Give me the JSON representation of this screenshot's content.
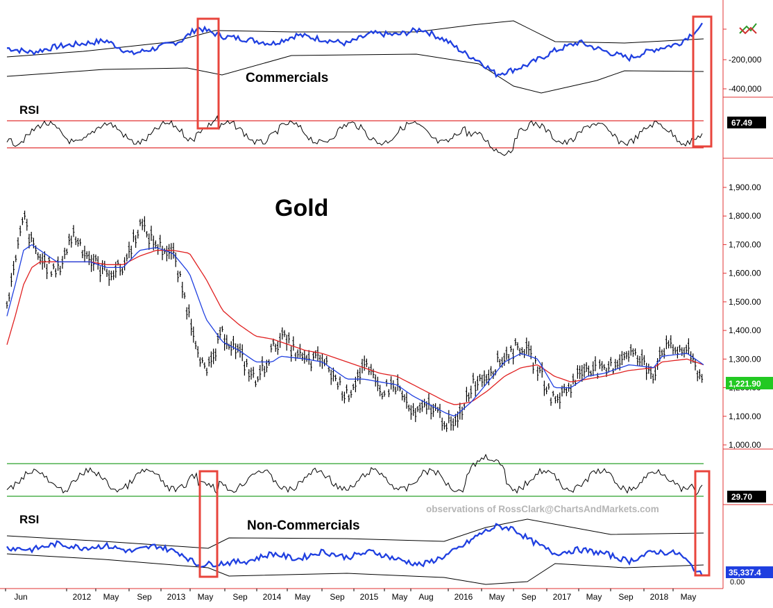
{
  "chart_data": [
    {
      "type": "line",
      "title": "Commercials",
      "indicator_label": "RSI",
      "y_ticks": [
        "-200,000",
        "-400,000"
      ],
      "series": [
        {
          "color": "#1f3fe0",
          "x": [
            "2011-06",
            "2011-09",
            "2011-12",
            "2012-03",
            "2012-06",
            "2012-09",
            "2012-12",
            "2013-03",
            "2013-05",
            "2013-08",
            "2013-11",
            "2014-02",
            "2014-05",
            "2014-08",
            "2014-11",
            "2015-02",
            "2015-05",
            "2015-08",
            "2015-11",
            "2016-01",
            "2016-03",
            "2016-05",
            "2016-07",
            "2016-09",
            "2016-12",
            "2017-03",
            "2017-06",
            "2017-09",
            "2017-12",
            "2018-03",
            "2018-06"
          ],
          "y": [
            -120000,
            -150000,
            -110000,
            -90000,
            -70000,
            -160000,
            -120000,
            -70000,
            20000,
            -40000,
            -60000,
            -90000,
            -30000,
            -60000,
            -90000,
            -20000,
            -30000,
            10000,
            -70000,
            -150000,
            -210000,
            -300000,
            -270000,
            -230000,
            -140000,
            -80000,
            -140000,
            -190000,
            -130000,
            -90000,
            40000
          ]
        }
      ],
      "rsi_value_label": "67.49"
    },
    {
      "type": "bar",
      "title": "Gold",
      "watermark": "observations of RossClark@ChartsAndMarkets.com",
      "y_ticks": [
        "1,900.00",
        "1,800.00",
        "1,700.00",
        "1,600.00",
        "1,500.00",
        "1,400.00",
        "1,300.00",
        "1,200.00",
        "1,100.00",
        "1,000.00"
      ],
      "ylim": [
        1000,
        1950
      ],
      "last_price_label": "1,221.90",
      "price_color": "#000000",
      "ma_fast_color": "#1f3fe0",
      "ma_slow_color": "#e02020",
      "last_color": "#22c922",
      "price_x": [
        "2011-06",
        "2011-07",
        "2011-08",
        "2011-09",
        "2011-10",
        "2011-12",
        "2012-02",
        "2012-04",
        "2012-06",
        "2012-08",
        "2012-10",
        "2012-12",
        "2013-02",
        "2013-04",
        "2013-06",
        "2013-08",
        "2013-10",
        "2013-12",
        "2014-02",
        "2014-03",
        "2014-06",
        "2014-08",
        "2014-11",
        "2015-01",
        "2015-03",
        "2015-05",
        "2015-07",
        "2015-09",
        "2015-11",
        "2015-12",
        "2016-02",
        "2016-04",
        "2016-06",
        "2016-08",
        "2016-10",
        "2016-12",
        "2017-02",
        "2017-04",
        "2017-06",
        "2017-09",
        "2017-12",
        "2018-01",
        "2018-04",
        "2018-06"
      ],
      "price_y": [
        1500,
        1630,
        1800,
        1700,
        1650,
        1600,
        1740,
        1650,
        1600,
        1620,
        1770,
        1700,
        1670,
        1450,
        1240,
        1390,
        1320,
        1220,
        1330,
        1380,
        1290,
        1300,
        1170,
        1280,
        1190,
        1210,
        1100,
        1140,
        1080,
        1060,
        1210,
        1250,
        1310,
        1350,
        1270,
        1150,
        1210,
        1280,
        1250,
        1330,
        1250,
        1340,
        1330,
        1220
      ],
      "ma_fast_y": [
        1450,
        1560,
        1680,
        1700,
        1680,
        1640,
        1640,
        1640,
        1620,
        1620,
        1680,
        1690,
        1670,
        1600,
        1440,
        1360,
        1330,
        1290,
        1290,
        1310,
        1300,
        1290,
        1230,
        1230,
        1220,
        1210,
        1170,
        1140,
        1110,
        1100,
        1150,
        1220,
        1290,
        1320,
        1300,
        1200,
        1200,
        1240,
        1250,
        1280,
        1270,
        1310,
        1320,
        1280
      ],
      "ma_slow_y": [
        1350,
        1450,
        1560,
        1620,
        1640,
        1640,
        1640,
        1640,
        1630,
        1630,
        1660,
        1680,
        1680,
        1670,
        1580,
        1470,
        1420,
        1380,
        1370,
        1360,
        1330,
        1320,
        1290,
        1270,
        1250,
        1240,
        1210,
        1180,
        1150,
        1140,
        1150,
        1190,
        1240,
        1270,
        1280,
        1240,
        1220,
        1230,
        1240,
        1260,
        1270,
        1290,
        1300,
        1280
      ]
    },
    {
      "type": "line",
      "title": "Non-Commercials",
      "indicator_label": "RSI",
      "rsi_value_label": "29.70",
      "last_value_label": "35,337.4",
      "tick_fragment": "0.00",
      "series": [
        {
          "color": "#1f3fe0",
          "x": [
            "2011-06",
            "2011-09",
            "2011-12",
            "2012-03",
            "2012-06",
            "2012-09",
            "2012-12",
            "2013-03",
            "2013-05",
            "2013-08",
            "2013-11",
            "2014-02",
            "2014-05",
            "2014-08",
            "2014-11",
            "2015-02",
            "2015-05",
            "2015-08",
            "2015-11",
            "2016-01",
            "2016-03",
            "2016-05",
            "2016-07",
            "2016-09",
            "2016-12",
            "2017-03",
            "2017-06",
            "2017-09",
            "2017-12",
            "2018-03",
            "2018-06"
          ],
          "y": [
            190000,
            180000,
            210000,
            190000,
            200000,
            170000,
            200000,
            160000,
            100000,
            110000,
            120000,
            160000,
            130000,
            170000,
            140000,
            170000,
            130000,
            100000,
            150000,
            200000,
            260000,
            300000,
            290000,
            230000,
            160000,
            180000,
            160000,
            120000,
            170000,
            160000,
            35337
          ]
        }
      ]
    }
  ],
  "x_axis": {
    "labels": [
      "Jun",
      "2012",
      "May",
      "Sep",
      "2013",
      "May",
      "Sep",
      "2014",
      "May",
      "Sep",
      "2015",
      "May",
      "Aug",
      "2016",
      "May",
      "Sep",
      "2017",
      "May",
      "Sep",
      "2018",
      "May"
    ]
  },
  "icons": {
    "corner_icon": "double-arrow-icon"
  }
}
